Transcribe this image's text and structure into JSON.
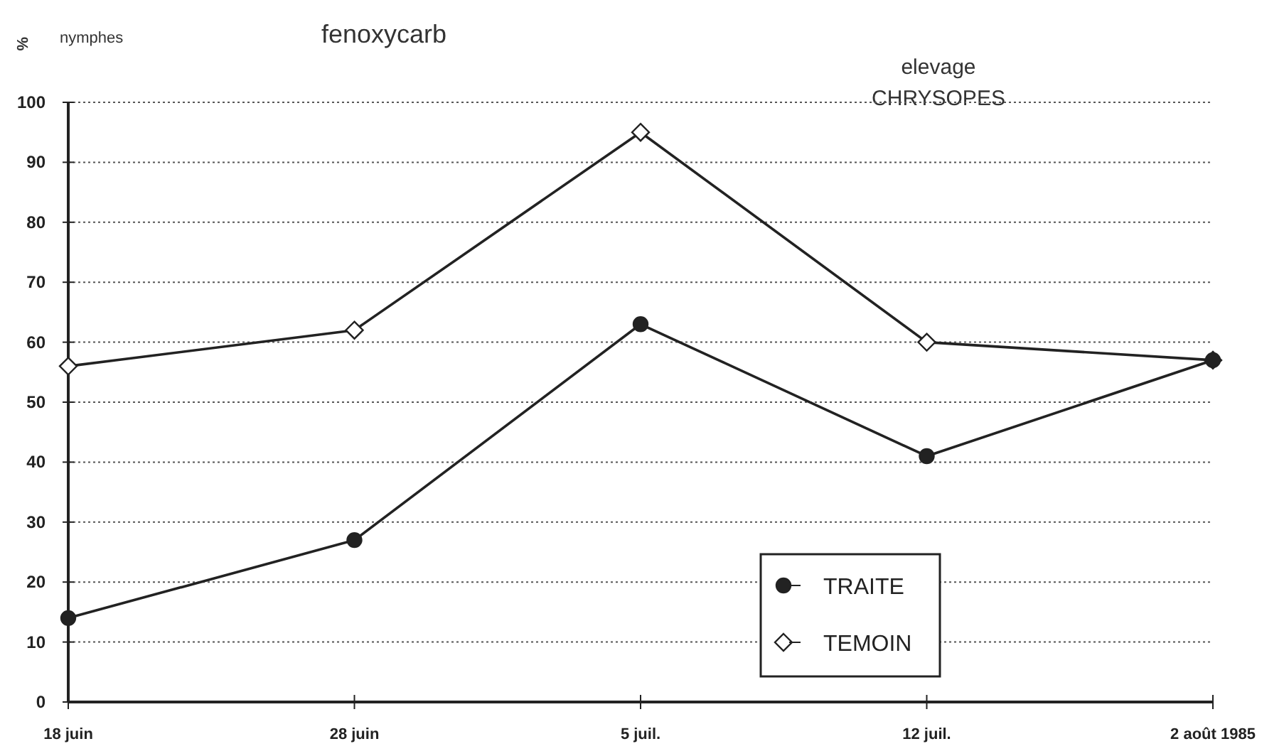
{
  "chart_data": {
    "type": "line",
    "title": "fenoxycarb",
    "ylabel": "%",
    "annotations": [
      "nymphes",
      "elevage\nCHRYSOPES"
    ],
    "categories": [
      "18 juin",
      "28 juin",
      "5 juil.",
      "12 juil.",
      "2 août 1985"
    ],
    "series": [
      {
        "name": "TRAITE",
        "color": "#222222",
        "marker": "circle",
        "values": [
          14,
          27,
          63,
          41,
          57
        ]
      },
      {
        "name": "TEMOIN",
        "color": "#222222",
        "marker": "diamond",
        "values": [
          56,
          62,
          95,
          60,
          57
        ]
      }
    ],
    "ylim": [
      0,
      100
    ],
    "yticks": [
      0,
      10,
      20,
      30,
      40,
      50,
      60,
      70,
      80,
      90,
      100
    ],
    "grid": "y",
    "legend": "bottom"
  }
}
